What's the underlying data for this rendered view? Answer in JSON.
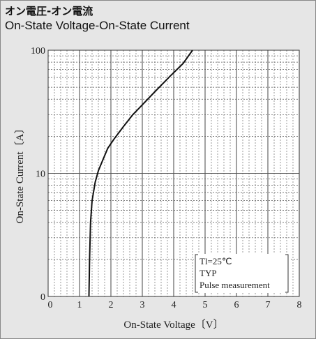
{
  "title": {
    "japanese": "オン電圧-オン電流",
    "english": "On-State Voltage-On-State Current"
  },
  "colors": {
    "panel_bg": "#e6e6e6",
    "plot_bg": "#ffffff",
    "grid": "#555555",
    "curve": "#111111"
  },
  "chart_data": {
    "type": "line",
    "xlabel": "On-State Voltage〔V〕",
    "ylabel": "On-State Current〔A〕",
    "xlim": [
      0,
      8
    ],
    "ylim": [
      1,
      100
    ],
    "yscale": "log",
    "x_ticks": [
      "0",
      "1",
      "2",
      "3",
      "4",
      "5",
      "6",
      "7",
      "8"
    ],
    "y_ticks": [
      {
        "value": 1,
        "label": "0"
      },
      {
        "value": 10,
        "label": "10"
      },
      {
        "value": 100,
        "label": "100"
      }
    ],
    "grid": true,
    "annotation": [
      "Tl=25℃",
      "TYP",
      "Pulse measurement"
    ],
    "series": [
      {
        "x": [
          1.3,
          1.32,
          1.35,
          1.4,
          1.5,
          1.6,
          1.75,
          1.9,
          2.1,
          2.4,
          2.7,
          3.0,
          3.4,
          3.9,
          4.3,
          4.6
        ],
        "y": [
          1.0,
          2.0,
          4.0,
          6.0,
          8.5,
          10.5,
          13.0,
          16.0,
          19.0,
          24.0,
          30.0,
          36.0,
          46.0,
          62.0,
          78.0,
          100.0
        ]
      }
    ]
  }
}
